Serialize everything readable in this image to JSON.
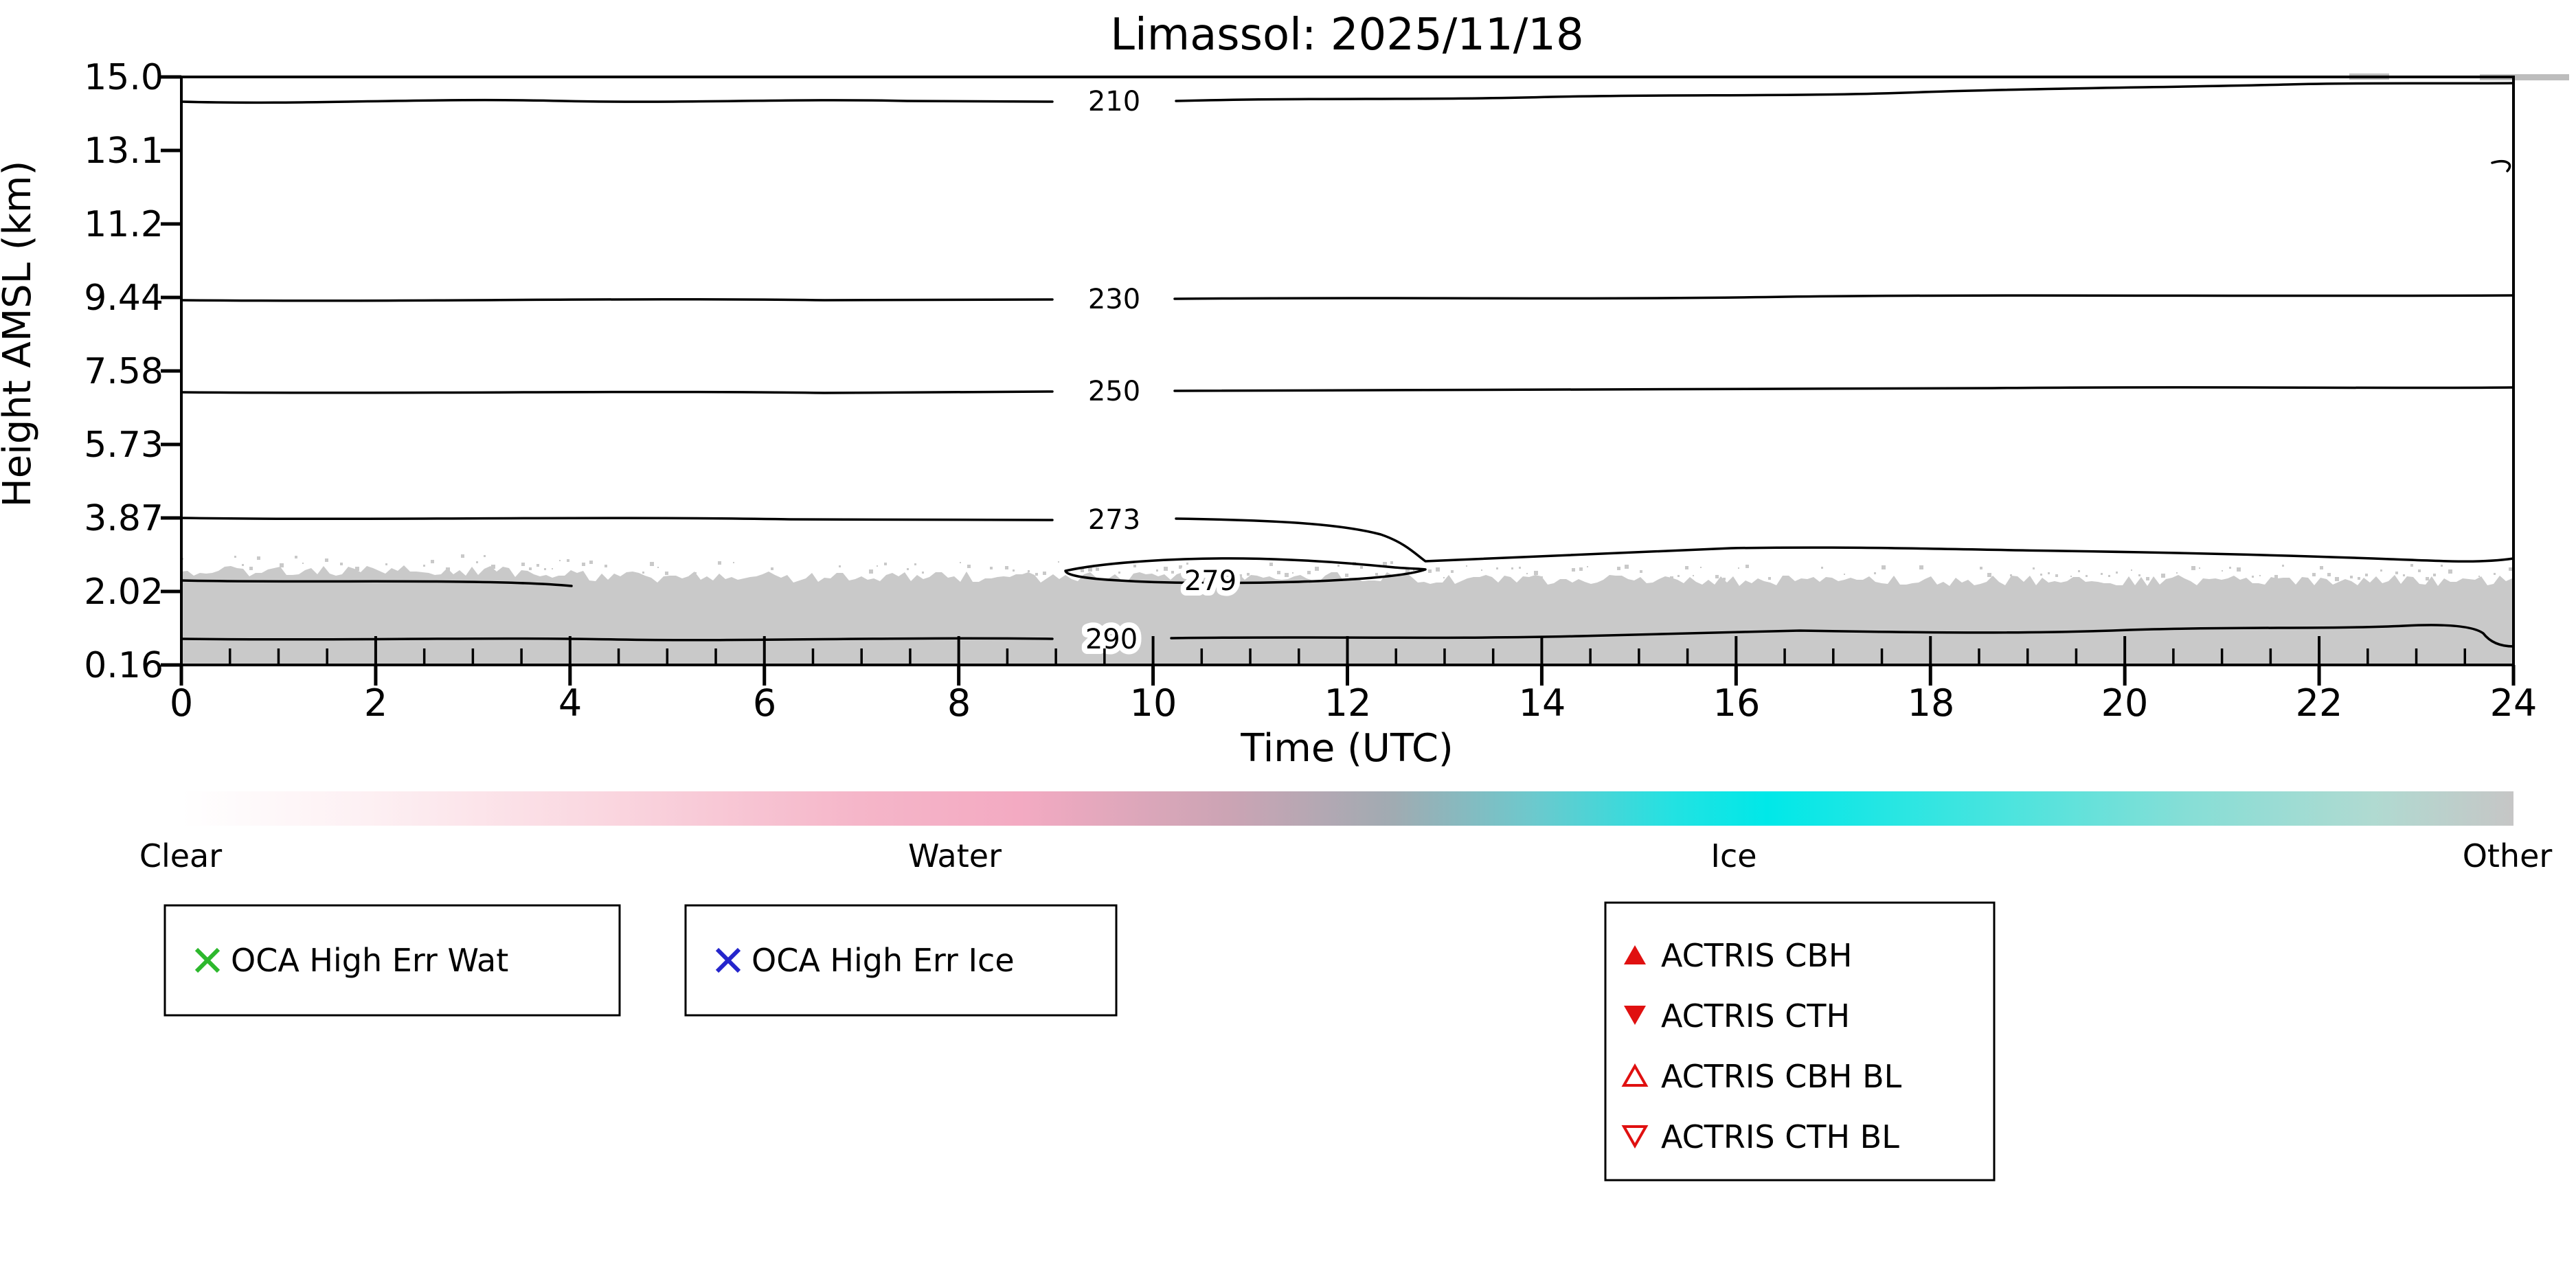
{
  "chart_data": {
    "type": "heatmap",
    "title": "Limassol: 2025/11/18",
    "station": "Limassol",
    "date": "2025/11/18",
    "xlabel": "Time (UTC)",
    "ylabel": "Height AMSL (km)",
    "x_ticks": [
      "0",
      "2",
      "4",
      "6",
      "8",
      "10",
      "12",
      "14",
      "16",
      "18",
      "20",
      "22",
      "24"
    ],
    "y_ticks": [
      "15.0",
      "13.1",
      "11.2",
      "9.44",
      "7.58",
      "5.73",
      "3.87",
      "2.02",
      "0.16"
    ],
    "x_range_utc_hours": [
      0,
      24
    ],
    "y_range_km": [
      0.16,
      15.0
    ],
    "grid": false,
    "legend_position": "below",
    "isotherm_contours": [
      {
        "label": "210",
        "approx_height_km": 14.4
      },
      {
        "label": "230",
        "approx_height_km": 9.4
      },
      {
        "label": "250",
        "approx_height_km": 7.1
      },
      {
        "label": "273",
        "approx_height_km": 3.9
      },
      {
        "label": "279",
        "approx_height_km": 2.3
      },
      {
        "label": "290",
        "approx_height_km": 0.9
      }
    ],
    "phase_field": {
      "dominant_category": "Clear",
      "surface_layer": {
        "category": "Other",
        "color": "#c9c9c9",
        "top_height_km_approx": 2.4,
        "extent_utc_hours": [
          0,
          24
        ]
      }
    }
  },
  "colorbar": {
    "labels": [
      "Clear",
      "Water",
      "Ice",
      "Other"
    ],
    "clear_color": "#ffffff",
    "water_color": "#f3aac2",
    "ice_color": "#00e8e8",
    "other_color": "#c6c6c6"
  },
  "legends": {
    "oca_wat": {
      "label": "OCA High Err Wat",
      "marker": "x",
      "color": "#2db82d"
    },
    "oca_ice": {
      "label": "OCA High Err Ice",
      "marker": "x",
      "color": "#2525cc"
    },
    "actris": {
      "color": "#e01010",
      "items": [
        {
          "label": "ACTRIS CBH",
          "marker": "triangle-up-filled"
        },
        {
          "label": "ACTRIS CTH",
          "marker": "triangle-down-filled"
        },
        {
          "label": "ACTRIS CBH BL",
          "marker": "triangle-up-open"
        },
        {
          "label": "ACTRIS CTH BL",
          "marker": "triangle-down-open"
        }
      ]
    }
  }
}
